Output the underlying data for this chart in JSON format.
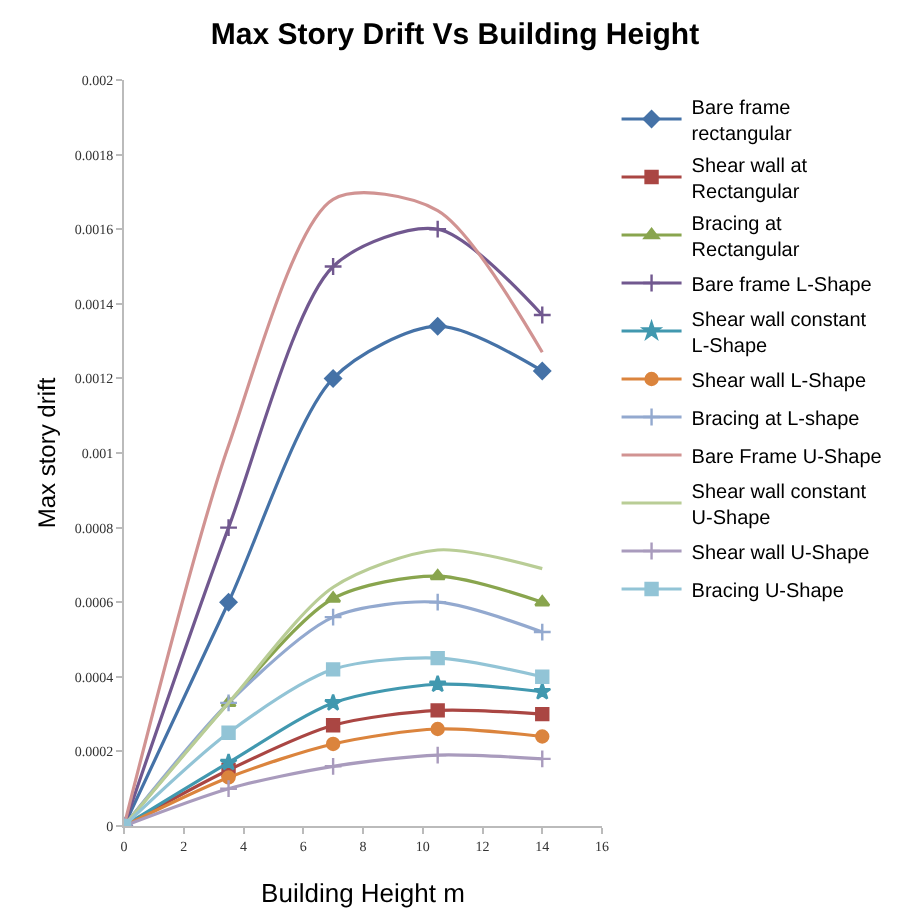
{
  "chart_data": {
    "type": "line",
    "title": "Max Story Drift Vs Building Height",
    "xlabel": "Building Height m",
    "ylabel": "Max story drift",
    "x": [
      0,
      3.5,
      7,
      10.5,
      14
    ],
    "xlim": [
      0,
      16
    ],
    "xticks": [
      0,
      2,
      4,
      6,
      8,
      10,
      12,
      14,
      16
    ],
    "ylim": [
      0,
      0.002
    ],
    "yticks": [
      0,
      0.0002,
      0.0004,
      0.0006,
      0.0008,
      0.001,
      0.0012,
      0.0014,
      0.0016,
      0.0018,
      0.002
    ],
    "legend": "right",
    "line_style": "solid",
    "series": [
      {
        "name": "Bare frame rectangular",
        "color": "#4572a7",
        "marker": "diamond",
        "values": [
          0,
          0.0006,
          0.0012,
          0.00134,
          0.00122
        ]
      },
      {
        "name": "Shear wall at Rectangular",
        "color": "#aa4643",
        "marker": "square",
        "values": [
          0,
          0.00015,
          0.00027,
          0.00031,
          0.0003
        ]
      },
      {
        "name": "Bracing at Rectangular",
        "color": "#89a54e",
        "marker": "triangle",
        "values": [
          0,
          0.00033,
          0.00061,
          0.00067,
          0.0006
        ]
      },
      {
        "name": "Bare frame L-Shape",
        "color": "#71588f",
        "marker": "cross",
        "values": [
          0,
          0.0008,
          0.0015,
          0.0016,
          0.00137
        ]
      },
      {
        "name": "Shear wall constant L-Shape",
        "color": "#4198af",
        "marker": "star",
        "values": [
          0,
          0.00017,
          0.00033,
          0.00038,
          0.00036
        ]
      },
      {
        "name": "Shear wall L-Shape",
        "color": "#db843d",
        "marker": "circle",
        "values": [
          0,
          0.00013,
          0.00022,
          0.00026,
          0.00024
        ]
      },
      {
        "name": "Bracing at L-shape",
        "color": "#93a9cf",
        "marker": "cross",
        "values": [
          0,
          0.00033,
          0.00056,
          0.0006,
          0.00052
        ]
      },
      {
        "name": "Bare Frame U-Shape",
        "color": "#d19392",
        "marker": "none",
        "values": [
          0,
          0.00102,
          0.00168,
          0.00165,
          0.00127
        ]
      },
      {
        "name": "Shear wall constant U-Shape",
        "color": "#b9cd96",
        "marker": "none",
        "values": [
          0,
          0.00033,
          0.00064,
          0.00074,
          0.00069
        ]
      },
      {
        "name": "Shear wall U-Shape",
        "color": "#a99bbd",
        "marker": "cross",
        "values": [
          0,
          0.0001,
          0.00016,
          0.00019,
          0.00018
        ]
      },
      {
        "name": "Bracing U-Shape",
        "color": "#92c4d6",
        "marker": "square",
        "values": [
          0,
          0.00025,
          0.00042,
          0.00045,
          0.0004
        ]
      }
    ]
  }
}
